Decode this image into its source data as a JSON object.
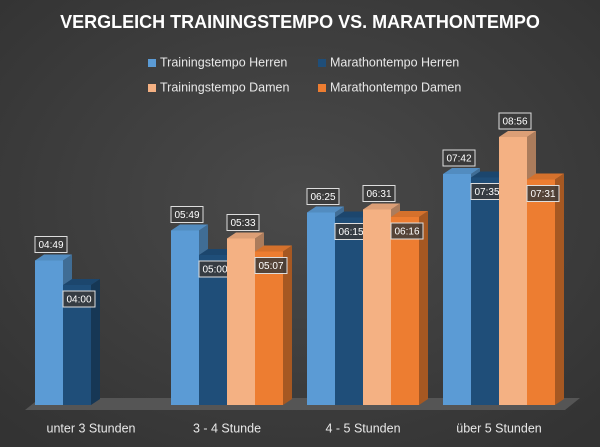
{
  "chart_data": {
    "type": "bar3d",
    "title": "VERGLEICH TRAININGSTEMPO VS. MARATHONTEMPO",
    "categories": [
      "unter 3 Stunden",
      "3 - 4 Stunde",
      "4 - 5 Stunden",
      "über 5 Stunden"
    ],
    "series": [
      {
        "name": "Trainingstempo Herren",
        "color": "#5b9bd5",
        "values": [
          4.8167,
          5.8167,
          6.4167,
          7.7
        ],
        "value_labels": [
          "04:49",
          "05:49",
          "06:25",
          "07:42"
        ]
      },
      {
        "name": "Marathontempo Herren",
        "color": "#1f4e79",
        "values": [
          4.0,
          5.0,
          6.25,
          7.5833
        ],
        "value_labels": [
          "04:00",
          "05:00",
          "06:15",
          "07:35"
        ]
      },
      {
        "name": "Trainingstempo Damen",
        "color": "#f4b183",
        "values": [
          null,
          5.55,
          6.5167,
          8.9333
        ],
        "value_labels": [
          null,
          "05:33",
          "06:31",
          "08:56"
        ]
      },
      {
        "name": "Marathontempo Damen",
        "color": "#ed7d31",
        "values": [
          null,
          5.1167,
          6.2667,
          7.5167
        ],
        "value_labels": [
          null,
          "05:07",
          "06:16",
          "07:31"
        ]
      }
    ]
  }
}
